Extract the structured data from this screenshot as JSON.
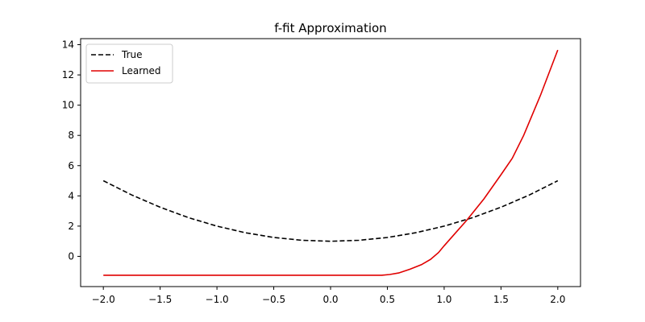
{
  "chart_data": {
    "type": "line",
    "title": "f-fit Approximation",
    "xlabel": "",
    "ylabel": "",
    "xlim": [
      -2.2,
      2.2
    ],
    "ylim": [
      -2.0,
      14.4
    ],
    "xticks": [
      -2.0,
      -1.5,
      -1.0,
      -0.5,
      0.0,
      0.5,
      1.0,
      1.5,
      2.0
    ],
    "xtick_labels": [
      "−2.0",
      "−1.5",
      "−1.0",
      "−0.5",
      "0.0",
      "0.5",
      "1.0",
      "1.5",
      "2.0"
    ],
    "yticks": [
      0,
      2,
      4,
      6,
      8,
      10,
      12,
      14
    ],
    "ytick_labels": [
      "0",
      "2",
      "4",
      "6",
      "8",
      "10",
      "12",
      "14"
    ],
    "grid": false,
    "legend_position": "top-left",
    "series": [
      {
        "name": "True",
        "color": "#000000",
        "style": "dashed",
        "x": [
          -2.0,
          -1.75,
          -1.5,
          -1.25,
          -1.0,
          -0.75,
          -0.5,
          -0.25,
          0.0,
          0.25,
          0.5,
          0.75,
          1.0,
          1.25,
          1.5,
          1.75,
          2.0
        ],
        "y": [
          5.0,
          4.06,
          3.25,
          2.56,
          2.0,
          1.56,
          1.25,
          1.06,
          1.0,
          1.06,
          1.25,
          1.56,
          2.0,
          2.56,
          3.25,
          4.06,
          5.0
        ]
      },
      {
        "name": "Learned",
        "color": "#e00000",
        "style": "solid",
        "x": [
          -2.0,
          -1.5,
          -1.0,
          -0.5,
          0.0,
          0.45,
          0.52,
          0.6,
          0.7,
          0.8,
          0.88,
          0.95,
          1.0,
          1.1,
          1.2,
          1.35,
          1.5,
          1.6,
          1.7,
          1.85,
          2.0
        ],
        "y": [
          -1.25,
          -1.25,
          -1.25,
          -1.25,
          -1.25,
          -1.25,
          -1.2,
          -1.1,
          -0.85,
          -0.55,
          -0.2,
          0.25,
          0.7,
          1.55,
          2.4,
          3.8,
          5.4,
          6.5,
          8.0,
          10.7,
          13.65
        ]
      }
    ]
  }
}
